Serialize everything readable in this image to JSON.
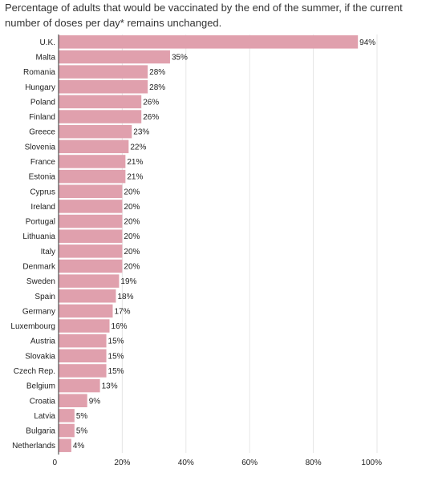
{
  "chart_data": {
    "type": "bar",
    "orientation": "horizontal",
    "title": "Percentage of adults that would be vaccinated by the end of the summer, if the current number of doses per day* remains unchanged.",
    "categories": [
      "U.K.",
      "Malta",
      "Romania",
      "Hungary",
      "Poland",
      "Finland",
      "Greece",
      "Slovenia",
      "France",
      "Estonia",
      "Cyprus",
      "Ireland",
      "Portugal",
      "Lithuania",
      "Italy",
      "Denmark",
      "Sweden",
      "Spain",
      "Germany",
      "Luxembourg",
      "Austria",
      "Slovakia",
      "Czech Rep.",
      "Belgium",
      "Croatia",
      "Latvia",
      "Bulgaria",
      "Netherlands"
    ],
    "values": [
      94,
      35,
      28,
      28,
      26,
      26,
      23,
      22,
      21,
      21,
      20,
      20,
      20,
      20,
      20,
      20,
      19,
      18,
      17,
      16,
      15,
      15,
      15,
      13,
      9,
      5,
      5,
      4
    ],
    "value_labels": [
      "94%",
      "35%",
      "28%",
      "28%",
      "26%",
      "26%",
      "23%",
      "22%",
      "21%",
      "21%",
      "20%",
      "20%",
      "20%",
      "20%",
      "20%",
      "20%",
      "19%",
      "18%",
      "17%",
      "16%",
      "15%",
      "15%",
      "15%",
      "13%",
      "9%",
      "5%",
      "5%",
      "4%"
    ],
    "xlim": [
      0,
      100
    ],
    "x_ticks": [
      0,
      20,
      40,
      60,
      80,
      100
    ],
    "x_tick_labels": [
      "0",
      "20%",
      "40%",
      "60%",
      "80%",
      "100%"
    ],
    "grid": true,
    "bar_color": "#e0a0ad",
    "grid_color": "#e6e6e6",
    "text_color": "#222222"
  }
}
